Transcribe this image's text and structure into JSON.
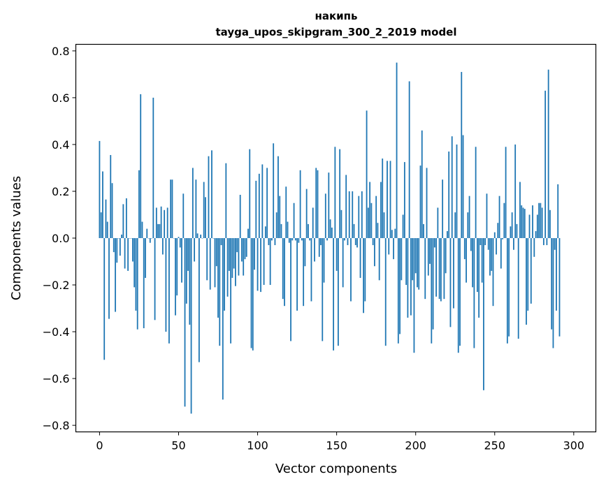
{
  "chart_data": {
    "type": "bar",
    "title_line1": "накипь",
    "title_line2": "tayga_upos_skipgram_300_2_2019 model",
    "xlabel": "Vector components",
    "ylabel": "Components values",
    "xlim": [
      -15.0,
      314.0
    ],
    "ylim": [
      -0.828,
      0.828
    ],
    "xticks": [
      0,
      50,
      100,
      150,
      200,
      250,
      300
    ],
    "xtick_labels": [
      "0",
      "50",
      "100",
      "150",
      "200",
      "250",
      "300"
    ],
    "yticks": [
      -0.8,
      -0.6,
      -0.4,
      -0.2,
      0.0,
      0.2,
      0.4,
      0.6,
      0.8
    ],
    "ytick_labels": [
      "−0.8",
      "−0.6",
      "−0.4",
      "−0.2",
      "0.0",
      "0.2",
      "0.4",
      "0.6",
      "0.8"
    ],
    "bar_color": "#1f77b4",
    "bar_width": 0.8,
    "values": [
      0.415,
      0.11,
      0.285,
      -0.52,
      0.165,
      0.07,
      -0.345,
      0.355,
      0.235,
      -0.06,
      -0.315,
      -0.105,
      0.0,
      -0.075,
      0.015,
      0.145,
      -0.13,
      0.17,
      -0.14,
      0.0,
      0.0,
      -0.1,
      -0.21,
      -0.31,
      -0.39,
      0.29,
      0.615,
      0.07,
      -0.385,
      -0.17,
      0.04,
      0.0,
      -0.02,
      0.0,
      0.6,
      -0.35,
      0.13,
      0.06,
      0.06,
      0.135,
      -0.07,
      0.12,
      -0.4,
      0.13,
      -0.45,
      0.25,
      0.25,
      0.0,
      -0.33,
      -0.245,
      0.005,
      -0.04,
      -0.19,
      0.19,
      -0.72,
      -0.28,
      -0.14,
      -0.37,
      -0.75,
      0.3,
      -0.1,
      0.25,
      0.02,
      -0.53,
      0.015,
      0.0,
      0.24,
      0.175,
      -0.18,
      0.35,
      -0.22,
      0.375,
      0.0,
      -0.21,
      -0.12,
      -0.34,
      -0.46,
      -0.03,
      -0.69,
      -0.31,
      0.32,
      -0.25,
      -0.14,
      -0.45,
      -0.17,
      -0.13,
      -0.205,
      -0.06,
      -0.16,
      0.185,
      -0.1,
      -0.16,
      -0.09,
      -0.08,
      0.04,
      0.38,
      -0.47,
      -0.48,
      -0.135,
      0.245,
      -0.225,
      0.275,
      -0.23,
      0.315,
      -0.2,
      0.05,
      0.3,
      -0.03,
      -0.2,
      -0.01,
      0.405,
      -0.03,
      0.11,
      0.35,
      0.18,
      0.06,
      -0.26,
      -0.29,
      0.22,
      0.07,
      -0.02,
      -0.44,
      -0.01,
      0.15,
      -0.01,
      -0.31,
      -0.02,
      0.29,
      -0.01,
      -0.29,
      -0.12,
      0.21,
      0.06,
      -0.01,
      -0.27,
      0.13,
      -0.1,
      0.3,
      0.29,
      -0.08,
      -0.03,
      -0.44,
      -0.19,
      0.19,
      -0.01,
      0.28,
      0.08,
      0.045,
      -0.48,
      0.39,
      -0.14,
      -0.46,
      0.38,
      0.12,
      -0.21,
      -0.01,
      0.27,
      -0.03,
      0.2,
      -0.27,
      0.2,
      0.06,
      -0.03,
      -0.04,
      0.18,
      -0.17,
      0.2,
      -0.32,
      -0.27,
      0.545,
      0.13,
      0.24,
      0.15,
      -0.03,
      -0.12,
      0.18,
      0.065,
      -0.18,
      0.24,
      0.34,
      0.11,
      -0.46,
      0.33,
      -0.07,
      0.33,
      0.035,
      -0.09,
      0.04,
      0.75,
      -0.45,
      -0.41,
      -0.18,
      0.1,
      0.325,
      -0.2,
      -0.34,
      0.67,
      -0.33,
      -0.18,
      -0.49,
      -0.15,
      -0.21,
      -0.22,
      0.31,
      0.46,
      0.06,
      -0.26,
      0.3,
      -0.16,
      -0.11,
      -0.45,
      -0.39,
      -0.04,
      -0.25,
      0.13,
      -0.26,
      -0.27,
      0.25,
      -0.26,
      -0.15,
      0.03,
      0.37,
      -0.38,
      0.435,
      -0.3,
      0.11,
      0.4,
      -0.49,
      -0.46,
      0.71,
      0.44,
      -0.09,
      -0.19,
      0.11,
      0.18,
      -0.055,
      -0.21,
      -0.47,
      0.39,
      -0.23,
      -0.34,
      -0.03,
      -0.19,
      -0.65,
      -0.03,
      0.19,
      -0.05,
      -0.16,
      -0.14,
      -0.29,
      0.025,
      -0.07,
      0.065,
      0.18,
      -0.13,
      -0.005,
      0.15,
      0.39,
      -0.45,
      -0.42,
      0.05,
      0.11,
      -0.05,
      0.4,
      0.06,
      -0.43,
      0.24,
      0.14,
      0.13,
      0.125,
      -0.37,
      -0.31,
      0.1,
      -0.28,
      0.14,
      -0.08,
      0.03,
      0.1,
      0.15,
      0.15,
      0.13,
      -0.03,
      0.63,
      -0.03,
      0.72,
      0.12,
      -0.39,
      -0.47,
      -0.05,
      -0.31,
      0.23,
      -0.42
    ]
  }
}
